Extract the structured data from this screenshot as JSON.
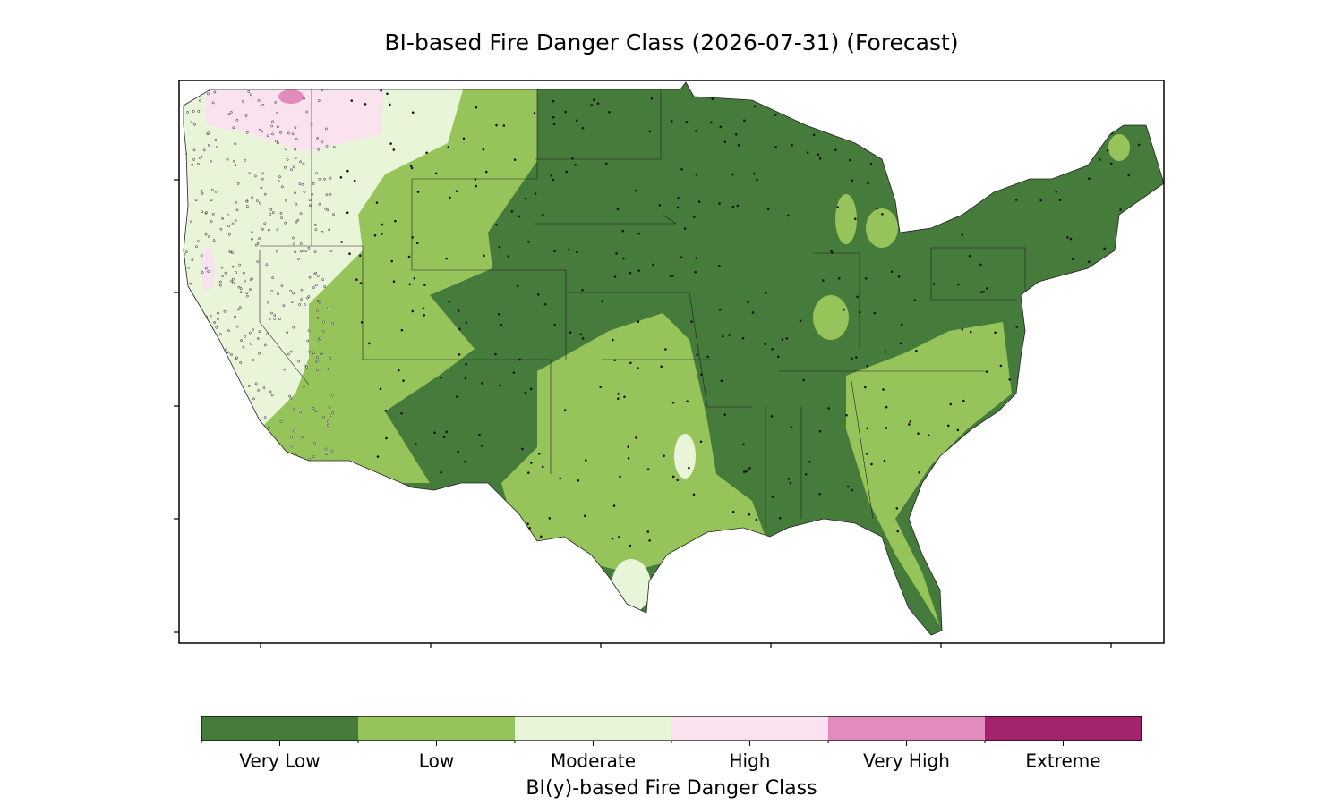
{
  "title": "BI-based Fire Danger Class (2026-07-31) (Forecast)",
  "colorbar": {
    "label": "BI(y)-based Fire Danger Class",
    "classes": [
      {
        "name": "Very Low",
        "color": "#457b3b"
      },
      {
        "name": "Low",
        "color": "#96c45a"
      },
      {
        "name": "Moderate",
        "color": "#e8f5d9"
      },
      {
        "name": "High",
        "color": "#fbe2ef"
      },
      {
        "name": "Very High",
        "color": "#e38bbd"
      },
      {
        "name": "Extreme",
        "color": "#a3246c"
      }
    ]
  }
}
